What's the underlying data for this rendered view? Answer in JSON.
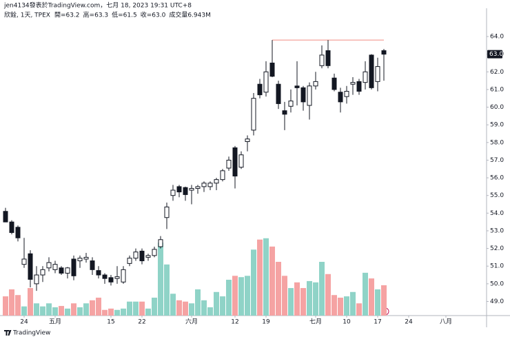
{
  "chart_data": {
    "type": "candlestick",
    "title": "jen4134發表於TradingView.com，七月 18, 2023 19:31 UTC+8",
    "symbol": "欣銓, 1天, TPEX",
    "ohlc_legend": [
      "開=63.2",
      "高=63.3",
      "低=61.5",
      "收=63.0",
      "成交量6.943M"
    ],
    "brand": "TradingView",
    "categories": [
      null,
      null,
      null,
      "24",
      null,
      null,
      null,
      null,
      "五月",
      null,
      null,
      null,
      null,
      null,
      null,
      null,
      null,
      "15",
      null,
      null,
      null,
      null,
      "22",
      null,
      null,
      null,
      null,
      null,
      null,
      null,
      "六月",
      null,
      null,
      null,
      null,
      null,
      null,
      "12",
      null,
      null,
      null,
      null,
      "19",
      null,
      null,
      null,
      null,
      null,
      null,
      null,
      "七月",
      null,
      null,
      null,
      null,
      "10",
      null,
      null,
      null,
      null,
      "17",
      null,
      null,
      null,
      null,
      "24",
      null,
      null,
      null,
      null,
      null,
      "八月"
    ],
    "open": [
      54.1,
      53.5,
      53.2,
      51.1,
      51.7,
      50.0,
      50.5,
      50.9,
      50.8,
      50.9,
      50.6,
      51.4,
      51.3,
      51.4,
      51.3,
      50.75,
      50.5,
      50.35,
      50.3,
      50.1,
      51.15,
      51.45,
      51.85,
      51.5,
      51.6,
      52.1,
      53.75,
      55.0,
      55.5,
      55.45,
      55.3,
      55.4,
      55.5,
      55.5,
      55.7,
      55.9,
      56.55,
      57.7,
      56.6,
      58.05,
      58.7,
      61.3,
      60.85,
      62.5,
      61.3,
      59.8,
      60.05,
      61.2,
      61.1,
      60.1,
      61.2,
      62.35,
      63.2,
      61.65,
      60.85,
      60.6,
      61.3,
      61.45,
      61.4,
      62.95,
      61.45,
      63.2,
      null,
      null,
      null,
      null,
      null,
      null,
      null,
      null,
      null,
      null
    ],
    "high": [
      54.3,
      53.6,
      53.3,
      52.6,
      51.9,
      51.0,
      51.0,
      51.5,
      51.3,
      51.0,
      50.95,
      51.6,
      51.6,
      51.75,
      51.5,
      51.0,
      50.6,
      50.5,
      51.0,
      51.0,
      51.6,
      52.0,
      52.0,
      51.7,
      52.1,
      52.7,
      54.6,
      55.6,
      55.6,
      55.5,
      55.6,
      55.6,
      55.8,
      55.8,
      56.0,
      56.5,
      57.2,
      57.8,
      57.5,
      58.4,
      60.8,
      61.6,
      62.6,
      63.8,
      61.5,
      60.3,
      61.0,
      62.6,
      61.2,
      61.4,
      62.0,
      63.5,
      63.8,
      61.9,
      61.1,
      61.2,
      61.7,
      61.6,
      62.6,
      63.0,
      62.8,
      63.3,
      null,
      null,
      null,
      null,
      null,
      null,
      null,
      null,
      null,
      null
    ],
    "low": [
      53.5,
      52.8,
      52.4,
      50.9,
      49.8,
      49.6,
      50.1,
      50.7,
      50.6,
      50.5,
      50.3,
      50.2,
      50.9,
      51.2,
      50.5,
      50.3,
      50.0,
      49.9,
      50.0,
      50.0,
      51.0,
      51.3,
      51.1,
      51.3,
      51.5,
      52.0,
      53.1,
      54.7,
      54.9,
      54.7,
      54.5,
      55.1,
      55.2,
      55.3,
      55.3,
      55.8,
      56.4,
      55.4,
      56.5,
      57.5,
      58.4,
      60.5,
      60.6,
      61.7,
      59.9,
      58.7,
      59.7,
      60.1,
      59.8,
      59.3,
      61.0,
      62.2,
      62.2,
      60.9,
      59.7,
      60.2,
      60.7,
      60.7,
      61.0,
      61.0,
      60.9,
      61.5,
      null,
      null,
      null,
      null,
      null,
      null,
      null,
      null,
      null,
      null
    ],
    "close": [
      53.5,
      52.9,
      52.6,
      51.4,
      50.25,
      50.5,
      50.8,
      51.2,
      51.1,
      50.6,
      50.9,
      50.45,
      51.45,
      51.5,
      50.8,
      50.5,
      50.3,
      50.1,
      50.4,
      50.8,
      51.45,
      51.8,
      51.3,
      51.6,
      51.95,
      52.5,
      54.35,
      55.3,
      55.2,
      55.05,
      55.4,
      55.5,
      55.7,
      55.7,
      55.9,
      56.4,
      57.0,
      56.1,
      57.3,
      58.2,
      60.5,
      60.7,
      62.0,
      61.75,
      60.2,
      59.6,
      60.35,
      61.1,
      60.3,
      61.2,
      61.45,
      62.95,
      62.35,
      61.0,
      60.3,
      60.9,
      61.4,
      60.9,
      62.0,
      61.1,
      62.3,
      63.0,
      null,
      null,
      null,
      null,
      null,
      null,
      null,
      null,
      null,
      null
    ],
    "volume": [
      4.4,
      6.0,
      4.7,
      2.1,
      6.3,
      2.8,
      2.1,
      2.8,
      1.9,
      2.2,
      1.6,
      2.8,
      1.9,
      2.8,
      3.5,
      4.1,
      1.3,
      1.6,
      1.3,
      1.6,
      3.2,
      3.2,
      3.2,
      1.6,
      4.1,
      16.7,
      11.7,
      5.0,
      3.5,
      3.2,
      2.8,
      6.0,
      3.5,
      1.9,
      5.4,
      4.4,
      8.2,
      9.1,
      8.8,
      9.1,
      15.1,
      17.4,
      17.7,
      15.8,
      12.3,
      9.1,
      6.3,
      7.6,
      6.3,
      7.9,
      7.6,
      12.3,
      9.5,
      4.7,
      4.1,
      4.4,
      5.4,
      2.8,
      9.8,
      8.5,
      6.0,
      6.943,
      null,
      null,
      null,
      null,
      null,
      null,
      null,
      null,
      null,
      null
    ],
    "up_color": "#131722",
    "down_color": "#131722",
    "volume_up_color": "#8fd3c7",
    "volume_down_color": "#f5a3a3",
    "ylim": [
      48.2,
      65.6
    ],
    "volume_lim": [
      0,
      35
    ],
    "yticks": [
      {
        "value": 49,
        "label": "49.0"
      },
      {
        "value": 50,
        "label": "50.0"
      },
      {
        "value": 51,
        "label": "51.0"
      },
      {
        "value": 52,
        "label": "52.0"
      },
      {
        "value": 53,
        "label": "53.0"
      },
      {
        "value": 54,
        "label": "54.0"
      },
      {
        "value": 55,
        "label": "55.0"
      },
      {
        "value": 56,
        "label": "56.0"
      },
      {
        "value": 57,
        "label": "57.0"
      },
      {
        "value": 58,
        "label": "58.0"
      },
      {
        "value": 59,
        "label": "59.0"
      },
      {
        "value": 60,
        "label": "60.0"
      },
      {
        "value": 61,
        "label": "61.0"
      },
      {
        "value": 62,
        "label": "62.0"
      },
      {
        "value": 63,
        "label": "63.0"
      },
      {
        "value": 64,
        "label": "64.0"
      }
    ],
    "price_label": {
      "value": 63.0,
      "label": "63.0"
    },
    "hline": {
      "value": 63.8,
      "start": 43,
      "end": 61,
      "color": "#f08a80"
    }
  }
}
